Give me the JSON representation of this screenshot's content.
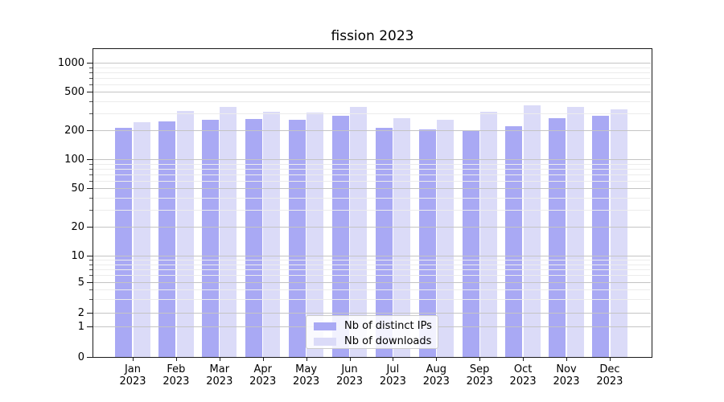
{
  "title": "fission 2023",
  "colors": {
    "bar_distinct_ips": "#a9a9f4",
    "bar_downloads": "#dbdbf8",
    "grid_major": "#c4c4c4",
    "grid_minor": "#ececec",
    "axis": "#1a1a1a",
    "legend_border": "#cccccc"
  },
  "legend": {
    "items": [
      {
        "label": "Nb of distinct IPs",
        "color": "#a9a9f4"
      },
      {
        "label": "Nb of downloads",
        "color": "#dbdbf8"
      }
    ]
  },
  "chart_data": {
    "type": "bar",
    "title": "fission 2023",
    "categories": [
      "Jan",
      "Feb",
      "Mar",
      "Apr",
      "May",
      "Jun",
      "Jul",
      "Aug",
      "Sep",
      "Oct",
      "Nov",
      "Dec"
    ],
    "year_label": "2023",
    "series": [
      {
        "name": "Nb of distinct IPs",
        "color": "#a9a9f4",
        "values": [
          211,
          250,
          256,
          264,
          260,
          284,
          214,
          205,
          201,
          222,
          269,
          283
        ]
      },
      {
        "name": "Nb of downloads",
        "color": "#dbdbf8",
        "values": [
          243,
          318,
          352,
          313,
          304,
          348,
          266,
          258,
          312,
          364,
          348,
          332
        ]
      }
    ],
    "y_axis": {
      "scale": "symlog",
      "major_ticks": [
        0,
        1,
        2,
        5,
        10,
        20,
        50,
        100,
        200,
        500,
        1000
      ],
      "minor_ticks": [
        3,
        4,
        6,
        7,
        8,
        9,
        30,
        40,
        60,
        70,
        80,
        90,
        300,
        400,
        600,
        700,
        800,
        900
      ],
      "range": [
        0,
        1400
      ]
    },
    "xlabel": "",
    "ylabel": "",
    "grid": true,
    "legend_position": "lower center"
  }
}
